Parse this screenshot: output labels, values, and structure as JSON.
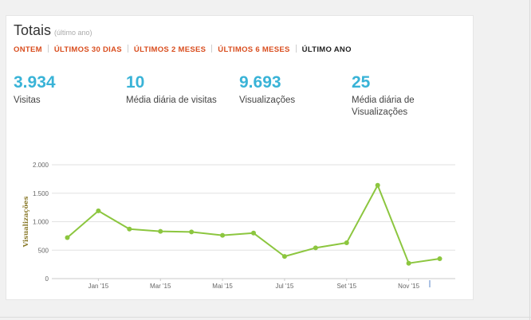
{
  "header": {
    "title": "Totais",
    "subtitle": "(último ano)"
  },
  "tabs": [
    {
      "label": "ONTEM",
      "active": false
    },
    {
      "label": "ÚLTIMOS 30 DIAS",
      "active": false
    },
    {
      "label": "ÚLTIMOS 2 MESES",
      "active": false
    },
    {
      "label": "ÚLTIMOS 6 MESES",
      "active": false
    },
    {
      "label": "ÚLTIMO ANO",
      "active": true
    }
  ],
  "stats": [
    {
      "value": "3.934",
      "label": "Visitas"
    },
    {
      "value": "10",
      "label": "Média diária de visitas"
    },
    {
      "value": "9.693",
      "label": "Visualizações"
    },
    {
      "value": "25",
      "label": "Média diária de Visualizações"
    }
  ],
  "colors": {
    "accent": "#39b3d7",
    "tab_link": "#d94e1f",
    "line": "#8cc63f"
  },
  "chart_data": {
    "type": "line",
    "ylabel": "Visualizações",
    "ylim": [
      0,
      2000
    ],
    "y_ticks": [
      0,
      500,
      1000,
      1500,
      2000
    ],
    "y_tick_labels": [
      "0",
      "500",
      "1.000",
      "1.500",
      "2.000"
    ],
    "x_tick_labels": [
      "Jan '15",
      "Mar '15",
      "Mai '15",
      "Jul '15",
      "Set '15",
      "Nov '15"
    ],
    "x_tick_positions": [
      1,
      3,
      5,
      7,
      9,
      11
    ],
    "grid": true,
    "series": [
      {
        "x": [
          0,
          1,
          2,
          3,
          4,
          5,
          6,
          7,
          8,
          9,
          10,
          11,
          12
        ],
        "values": [
          720,
          1190,
          870,
          830,
          820,
          760,
          800,
          390,
          540,
          630,
          1640,
          270,
          350
        ]
      }
    ]
  }
}
